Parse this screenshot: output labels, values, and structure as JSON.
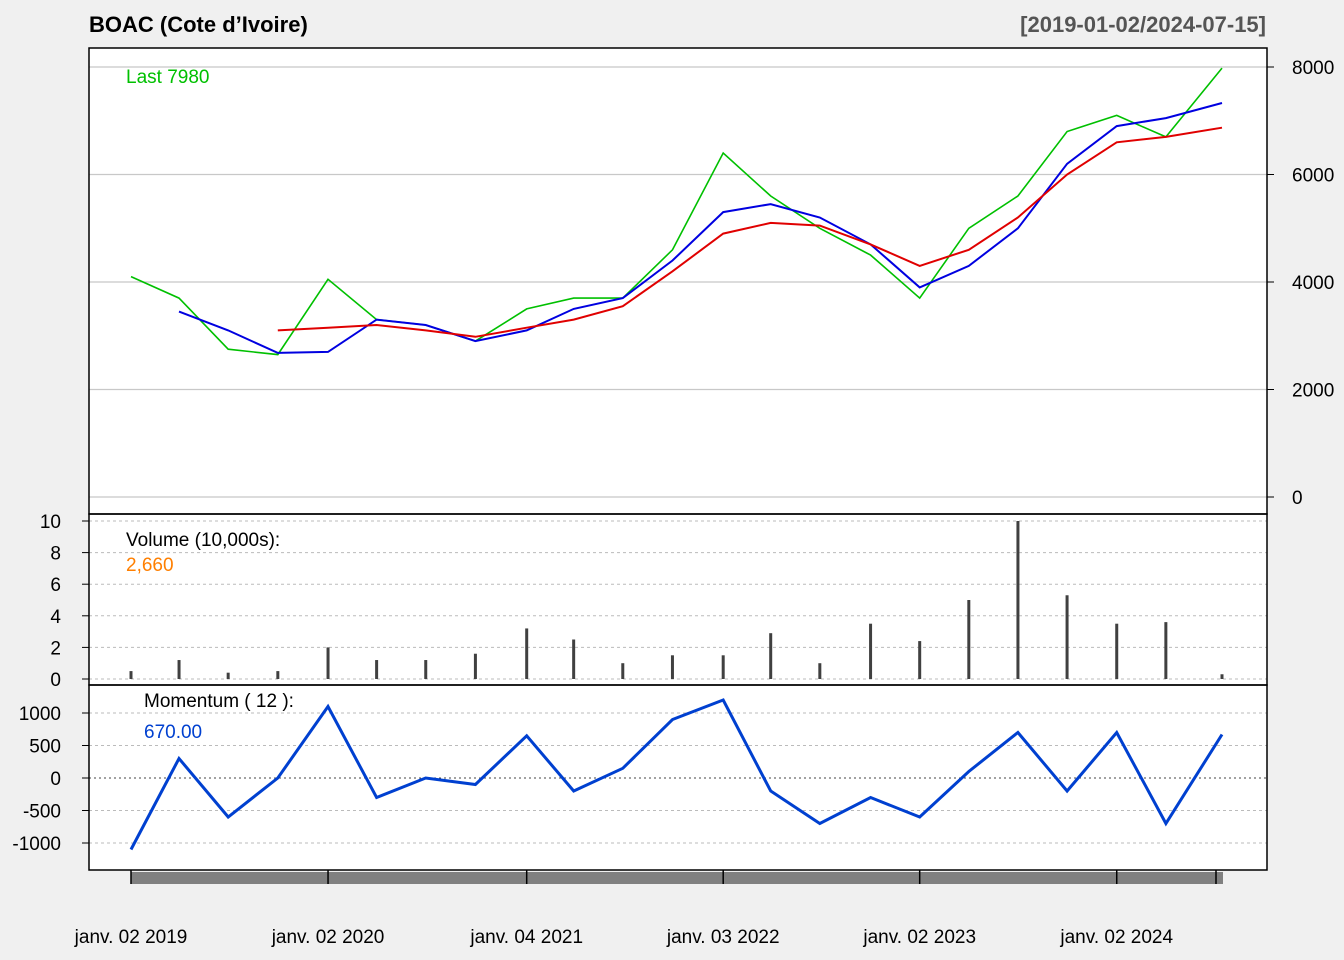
{
  "header": {
    "title": "BOAC (Cote d’Ivoire)",
    "range": "[2019-01-02/2024-07-15]"
  },
  "colors": {
    "price": "#00c000",
    "ma_short": "#0000e0",
    "ma_long": "#e00000",
    "volume": "#404040",
    "momentum": "#0040d0",
    "volume_value": "#ff7f00",
    "grid": "#c8c8c8",
    "background": "#ffffff"
  },
  "chart_data": [
    {
      "type": "line",
      "panel": "price",
      "last_label": "Last 7980",
      "ylim": [
        0,
        8000
      ],
      "yticks": [
        "0",
        "2000",
        "4000",
        "6000",
        "8000"
      ],
      "x": [
        "2019-01-02",
        "2019-04-01",
        "2019-07-01",
        "2019-10-01",
        "2020-01-02",
        "2020-04-01",
        "2020-07-01",
        "2020-10-01",
        "2021-01-04",
        "2021-04-01",
        "2021-07-01",
        "2021-10-01",
        "2022-01-03",
        "2022-04-01",
        "2022-07-01",
        "2022-10-03",
        "2023-01-02",
        "2023-04-03",
        "2023-07-03",
        "2023-10-02",
        "2024-01-02",
        "2024-04-02",
        "2024-07-15"
      ],
      "series": [
        {
          "key": "price",
          "values": [
            4100,
            3700,
            2750,
            2650,
            4050,
            3300,
            3200,
            2900,
            3500,
            3700,
            3700,
            4600,
            6400,
            5600,
            5000,
            4500,
            3700,
            5000,
            5600,
            6800,
            7100,
            6700,
            7980
          ]
        },
        {
          "key": "ma_short",
          "values": [
            null,
            3450,
            3100,
            2680,
            2700,
            3300,
            3200,
            2900,
            3100,
            3500,
            3700,
            4400,
            5300,
            5450,
            5200,
            4700,
            3900,
            4300,
            5000,
            6200,
            6900,
            7050,
            7330
          ]
        },
        {
          "key": "ma_long",
          "values": [
            null,
            null,
            null,
            3100,
            3150,
            3200,
            3100,
            2980,
            3150,
            3300,
            3550,
            4200,
            4900,
            5100,
            5050,
            4700,
            4300,
            4600,
            5200,
            6000,
            6600,
            6700,
            6870
          ]
        }
      ]
    },
    {
      "type": "bar",
      "panel": "volume",
      "title": "Volume (10,000s):",
      "last_value": "2,660",
      "ylim": [
        0,
        10
      ],
      "yticks": [
        "0",
        "2",
        "4",
        "6",
        "8",
        "10"
      ],
      "x": [
        "2019-01-02",
        "2019-04-01",
        "2019-07-01",
        "2019-10-01",
        "2020-01-02",
        "2020-04-01",
        "2020-07-01",
        "2020-10-01",
        "2021-01-04",
        "2021-04-01",
        "2021-07-01",
        "2021-10-01",
        "2022-01-03",
        "2022-04-01",
        "2022-07-01",
        "2022-10-03",
        "2023-01-02",
        "2023-04-03",
        "2023-07-03",
        "2023-10-02",
        "2024-01-02",
        "2024-04-02",
        "2024-07-15"
      ],
      "values": [
        0.5,
        1.2,
        0.4,
        0.5,
        2.0,
        1.2,
        1.2,
        1.6,
        3.2,
        2.5,
        1.0,
        1.5,
        1.5,
        2.9,
        1.0,
        3.5,
        2.4,
        5.0,
        10.0,
        5.3,
        3.5,
        3.6,
        0.3
      ]
    },
    {
      "type": "line",
      "panel": "momentum",
      "title": "Momentum ( 12 ):",
      "last_value": "670.00",
      "ylim": [
        -1000,
        1000
      ],
      "yticks": [
        "-1000",
        "-500",
        "0",
        "500",
        "1000"
      ],
      "x": [
        "2019-01-02",
        "2019-04-01",
        "2019-07-01",
        "2019-10-01",
        "2020-01-02",
        "2020-04-01",
        "2020-07-01",
        "2020-10-01",
        "2021-01-04",
        "2021-04-01",
        "2021-07-01",
        "2021-10-01",
        "2022-01-03",
        "2022-04-01",
        "2022-07-01",
        "2022-10-03",
        "2023-01-02",
        "2023-04-03",
        "2023-07-03",
        "2023-10-02",
        "2024-01-02",
        "2024-04-02",
        "2024-07-15"
      ],
      "series": [
        {
          "key": "momentum",
          "values": [
            -1100,
            300,
            -600,
            0,
            1100,
            -300,
            0,
            -100,
            650,
            -200,
            150,
            900,
            1200,
            -200,
            -700,
            -300,
            -600,
            100,
            700,
            -200,
            700,
            -700,
            670
          ]
        }
      ]
    }
  ],
  "x_axis": {
    "ticks": [
      {
        "date": "2019-01-02",
        "label": "janv. 02 2019"
      },
      {
        "date": "2020-01-02",
        "label": "janv. 02 2020"
      },
      {
        "date": "2021-01-04",
        "label": "janv. 04 2021"
      },
      {
        "date": "2022-01-03",
        "label": "janv. 03 2022"
      },
      {
        "date": "2023-01-02",
        "label": "janv. 02 2023"
      },
      {
        "date": "2024-01-02",
        "label": "janv. 02 2024"
      }
    ]
  }
}
